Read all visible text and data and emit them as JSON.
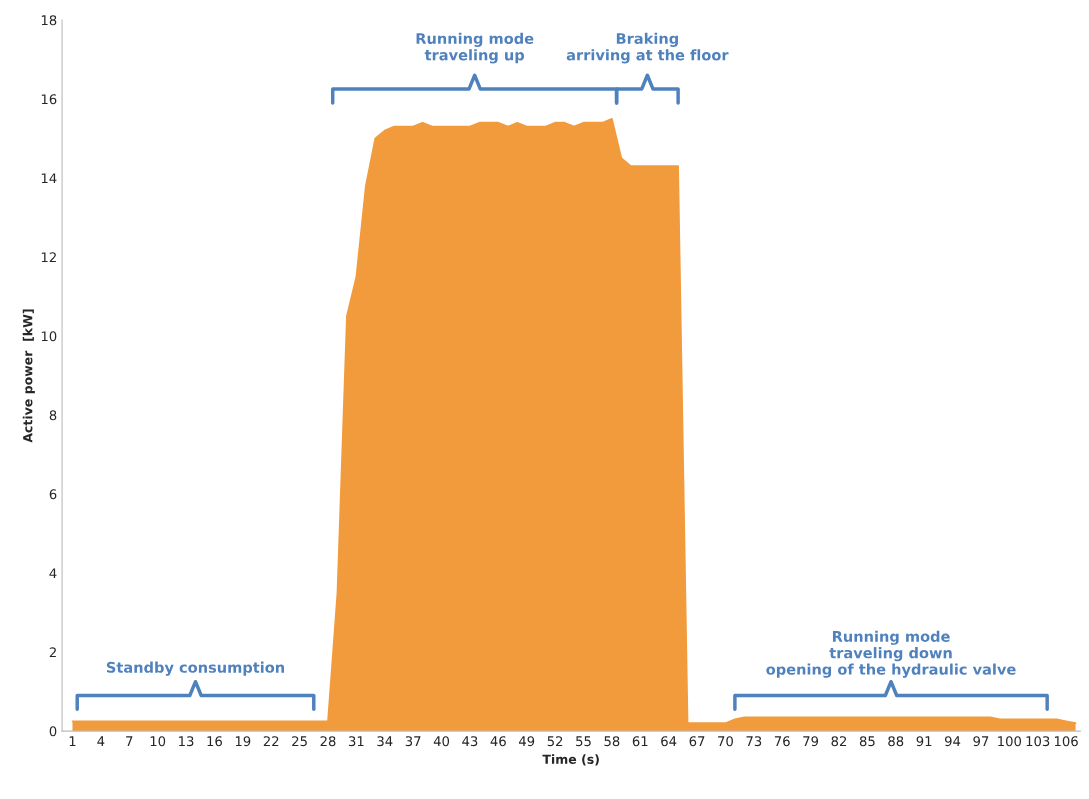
{
  "chart_data": {
    "type": "area",
    "xlabel": "Time (s)",
    "ylabel": "Active power  [kW]",
    "categories": [
      "1",
      null,
      null,
      "4",
      null,
      null,
      "7",
      null,
      null,
      "10",
      null,
      null,
      "13",
      null,
      null,
      "16",
      null,
      null,
      "19",
      null,
      null,
      "22",
      null,
      null,
      "25",
      null,
      null,
      "28",
      null,
      null,
      "31",
      null,
      null,
      "34",
      null,
      null,
      "37",
      null,
      null,
      "40",
      null,
      null,
      "43",
      null,
      null,
      "46",
      null,
      null,
      "49",
      null,
      null,
      "52",
      null,
      null,
      "55",
      null,
      null,
      "58",
      null,
      null,
      "61",
      null,
      null,
      "64",
      null,
      null,
      "67",
      null,
      null,
      "70",
      null,
      null,
      "73",
      null,
      null,
      "76",
      null,
      null,
      "79",
      null,
      null,
      "82",
      null,
      null,
      "85",
      null,
      null,
      "88",
      null,
      null,
      "91",
      null,
      null,
      "94",
      null,
      null,
      "97",
      null,
      null,
      "100",
      null,
      null,
      "103",
      null,
      null,
      "106",
      null
    ],
    "series": [
      {
        "color": "#f29b3d",
        "values": [
          0.25,
          0.25,
          0.25,
          0.25,
          0.25,
          0.25,
          0.25,
          0.25,
          0.25,
          0.25,
          0.25,
          0.25,
          0.25,
          0.25,
          0.25,
          0.25,
          0.25,
          0.25,
          0.25,
          0.25,
          0.25,
          0.25,
          0.25,
          0.25,
          0.25,
          0.25,
          0.25,
          0.25,
          3.5,
          10.5,
          11.5,
          13.8,
          15.0,
          15.2,
          15.3,
          15.3,
          15.3,
          15.4,
          15.3,
          15.3,
          15.3,
          15.3,
          15.3,
          15.4,
          15.4,
          15.4,
          15.3,
          15.4,
          15.3,
          15.3,
          15.3,
          15.4,
          15.4,
          15.3,
          15.4,
          15.4,
          15.4,
          15.5,
          14.5,
          14.3,
          14.3,
          14.3,
          14.3,
          14.3,
          14.3,
          0.2,
          0.2,
          0.2,
          0.2,
          0.2,
          0.3,
          0.35,
          0.35,
          0.35,
          0.35,
          0.35,
          0.35,
          0.35,
          0.35,
          0.35,
          0.35,
          0.35,
          0.35,
          0.35,
          0.35,
          0.35,
          0.35,
          0.35,
          0.35,
          0.35,
          0.35,
          0.35,
          0.35,
          0.35,
          0.35,
          0.35,
          0.35,
          0.35,
          0.3,
          0.3,
          0.3,
          0.3,
          0.3,
          0.3,
          0.3,
          0.25,
          0.2
        ]
      }
    ],
    "ylim": [
      0,
      18
    ],
    "yticks": [
      0,
      2,
      4,
      6,
      8,
      10,
      12,
      14,
      16,
      18
    ],
    "grid": false,
    "legend": false,
    "annotations": [
      "Standby consumption",
      "Running mode\ntraveling up",
      "Braking\narriving at the floor",
      "Running mode\ntraveling down\nopening of the hydraulic valve"
    ]
  }
}
